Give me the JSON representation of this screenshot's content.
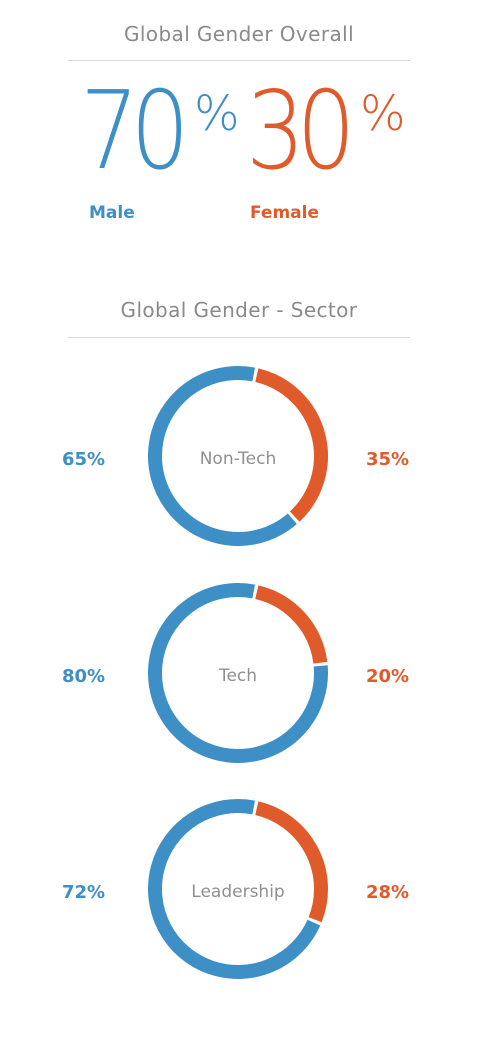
{
  "overall": {
    "heading": "Global Gender Overall",
    "male_value": "70",
    "female_value": "30",
    "percent_sign": "%",
    "male_label": "Male",
    "female_label": "Female"
  },
  "sector": {
    "heading": "Global Gender - Sector"
  },
  "colors": {
    "male": "#3d8fc6",
    "female": "#e05b2b"
  },
  "chart_data": [
    {
      "type": "pie",
      "title": "Non-Tech",
      "categories": [
        "Male",
        "Female"
      ],
      "values": [
        65,
        35
      ],
      "labels": [
        "65%",
        "35%"
      ]
    },
    {
      "type": "pie",
      "title": "Tech",
      "categories": [
        "Male",
        "Female"
      ],
      "values": [
        80,
        20
      ],
      "labels": [
        "80%",
        "20%"
      ]
    },
    {
      "type": "pie",
      "title": "Leadership",
      "categories": [
        "Male",
        "Female"
      ],
      "values": [
        72,
        28
      ],
      "labels": [
        "72%",
        "28%"
      ]
    }
  ]
}
